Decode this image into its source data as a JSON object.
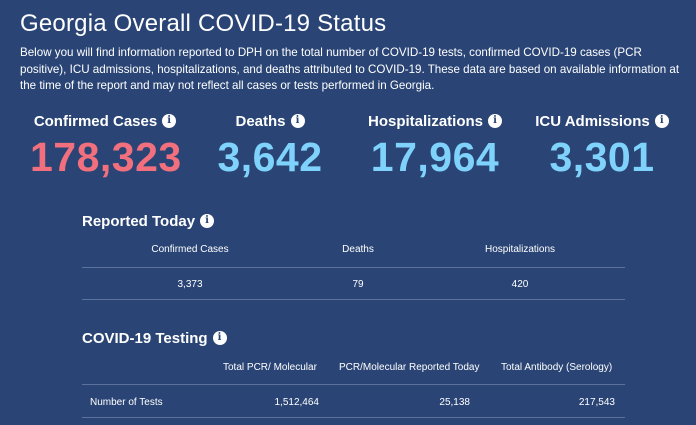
{
  "header": {
    "title": "Georgia Overall COVID-19 Status",
    "intro": "Below you will find information reported to DPH on the total number of COVID-19 tests, confirmed COVID-19 cases (PCR positive), ICU admissions, hospitalizations, and deaths attributed to COVID-19. These data are based on available information at the time of the report and may not reflect all cases or tests performed in Georgia."
  },
  "colors": {
    "background": "#2a4575",
    "confirmed": "#f2707e",
    "accent_blue": "#7fd2fb"
  },
  "icons": {
    "info": "i"
  },
  "summary": {
    "confirmed": {
      "label": "Confirmed Cases",
      "value": "178,323"
    },
    "deaths": {
      "label": "Deaths",
      "value": "3,642"
    },
    "hospitalizations": {
      "label": "Hospitalizations",
      "value": "17,964"
    },
    "icu": {
      "label": "ICU Admissions",
      "value": "3,301"
    }
  },
  "reported_today": {
    "title": "Reported Today",
    "columns": [
      "Confirmed Cases",
      "Deaths",
      "Hospitalizations"
    ],
    "values": [
      "3,373",
      "79",
      "420"
    ]
  },
  "testing": {
    "title": "COVID-19 Testing",
    "columns": [
      "Total PCR/ Molecular",
      "PCR/Molecular Reported Today",
      "Total Antibody (Serology)"
    ],
    "row": {
      "label": "Number of Tests",
      "values": [
        "1,512,464",
        "25,138",
        "217,543"
      ]
    }
  }
}
